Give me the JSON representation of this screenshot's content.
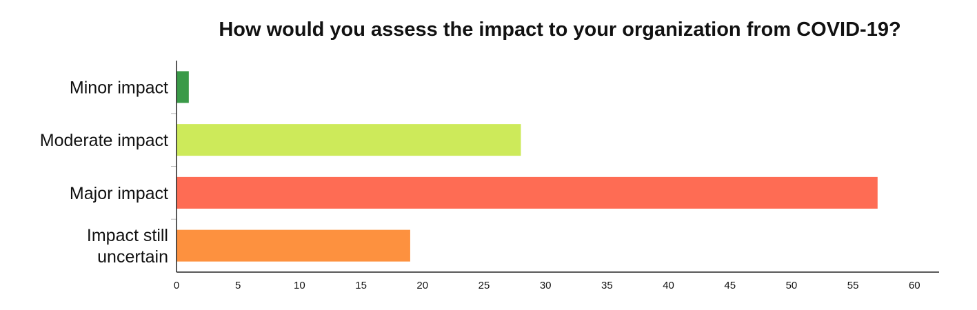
{
  "chart_data": {
    "type": "bar",
    "orientation": "horizontal",
    "title": "How would you assess the impact to your organization from COVID-19?",
    "categories": [
      [
        "Minor impact"
      ],
      [
        "Moderate impact"
      ],
      [
        "Major impact"
      ],
      [
        "Impact still",
        "uncertain"
      ]
    ],
    "values": [
      1,
      28,
      57,
      19
    ],
    "colors": [
      "#3a9a48",
      "#cdea5a",
      "#fe6c54",
      "#fd913f"
    ],
    "xlim": [
      0,
      62
    ],
    "xticks": [
      0,
      5,
      10,
      15,
      20,
      25,
      30,
      35,
      40,
      45,
      50,
      55,
      60
    ],
    "grid": false,
    "legend": "none"
  }
}
